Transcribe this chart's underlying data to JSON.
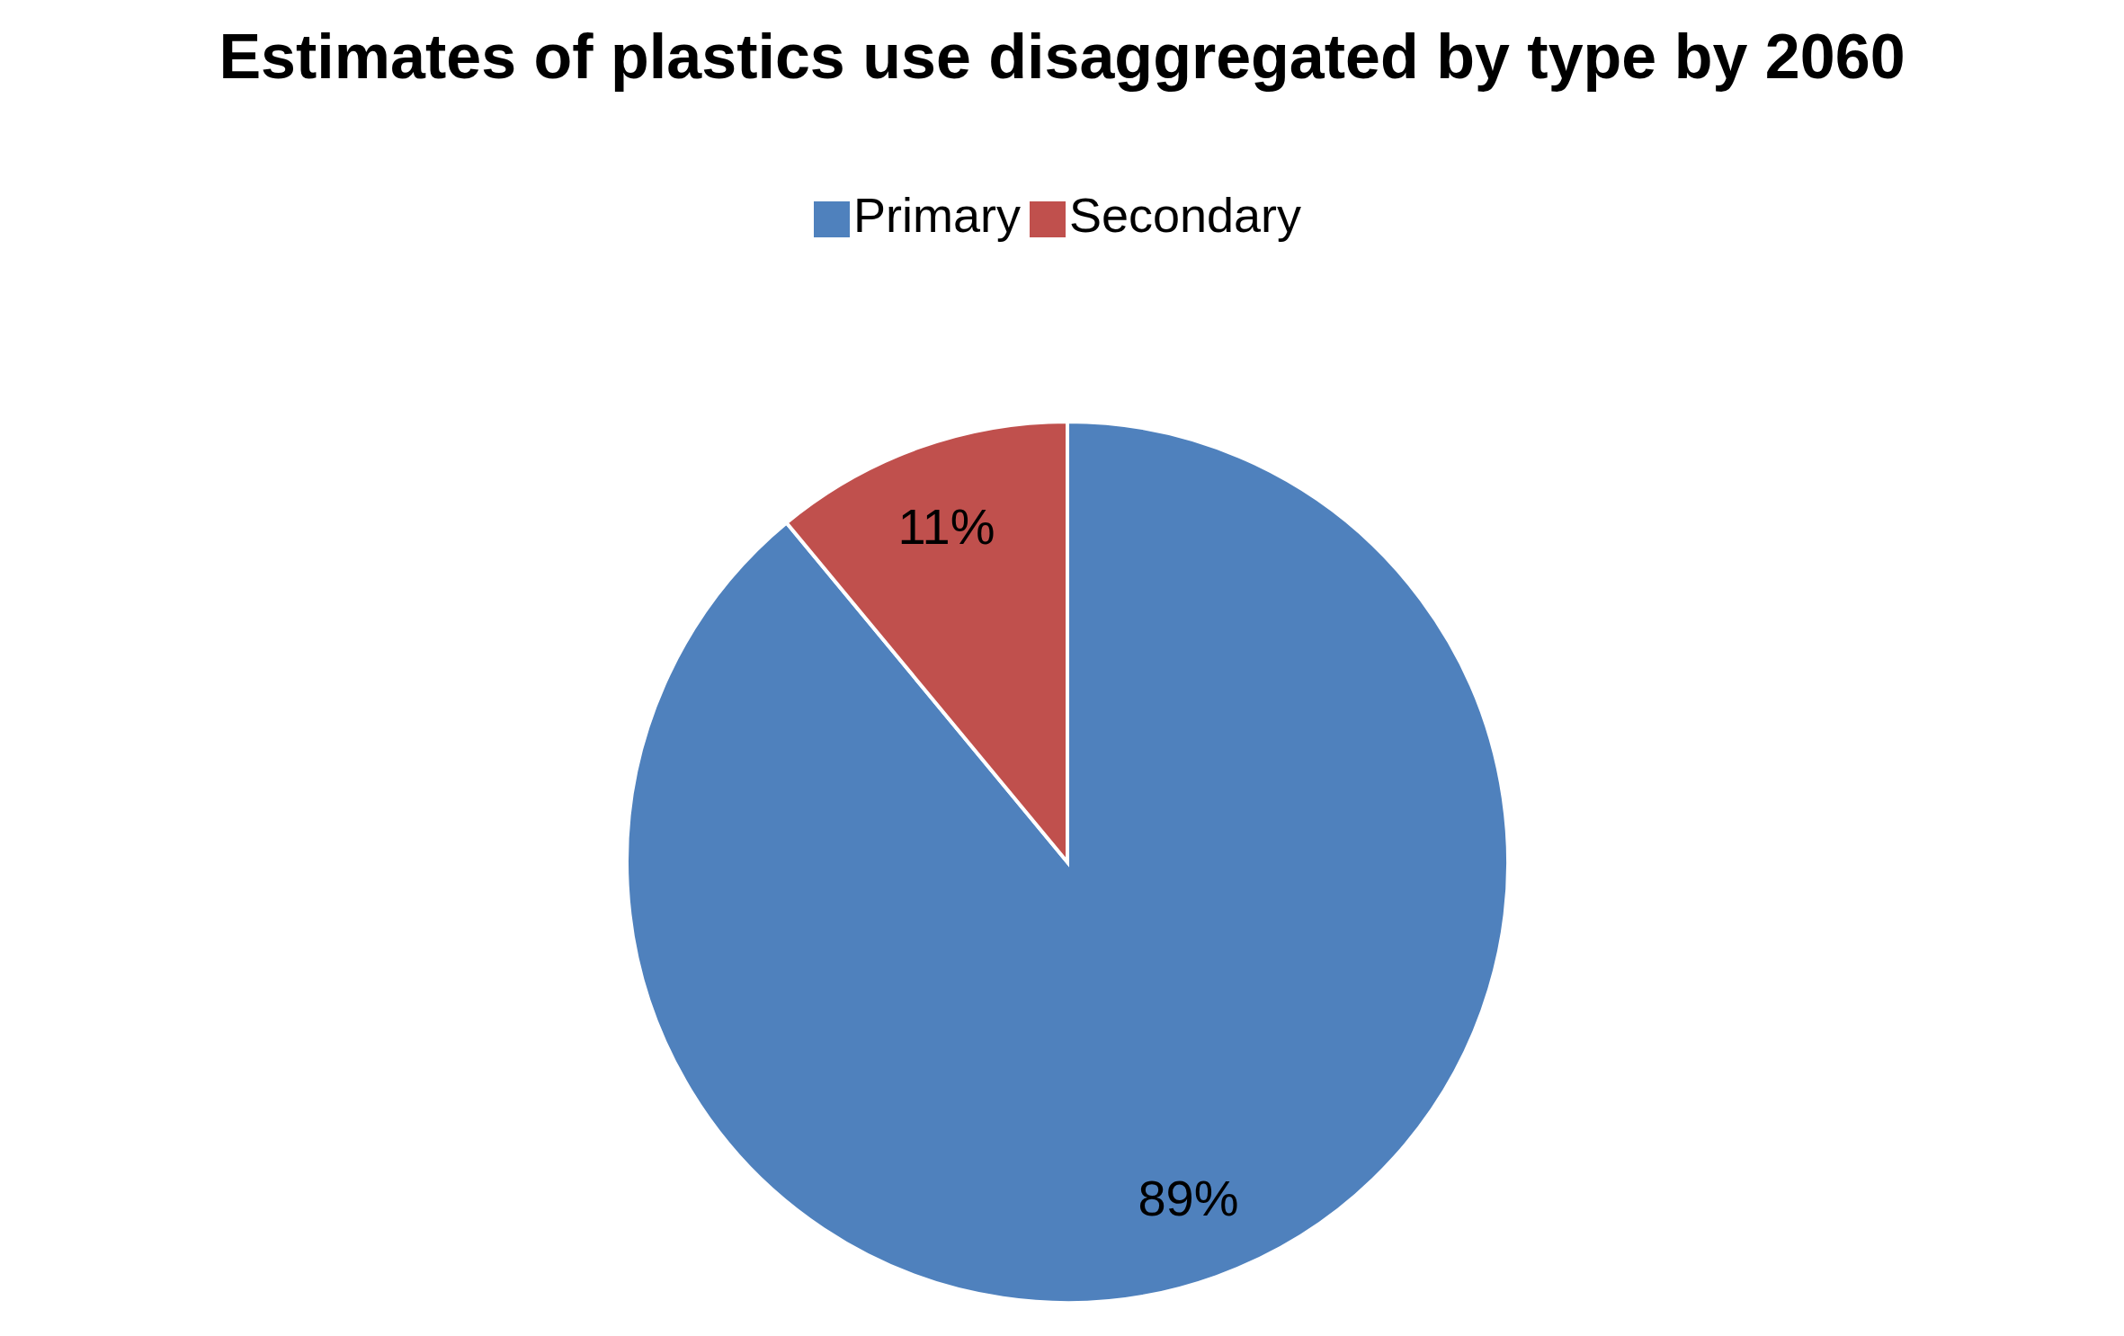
{
  "chart_data": {
    "type": "pie",
    "title": "Estimates of plastics use disaggregated by type by 2060",
    "categories": [
      "Primary",
      "Secondary"
    ],
    "values": [
      89,
      11
    ],
    "colors": [
      "#4f81bd",
      "#c0504d"
    ],
    "value_labels": [
      "89%",
      "11%"
    ],
    "legend": "top"
  }
}
